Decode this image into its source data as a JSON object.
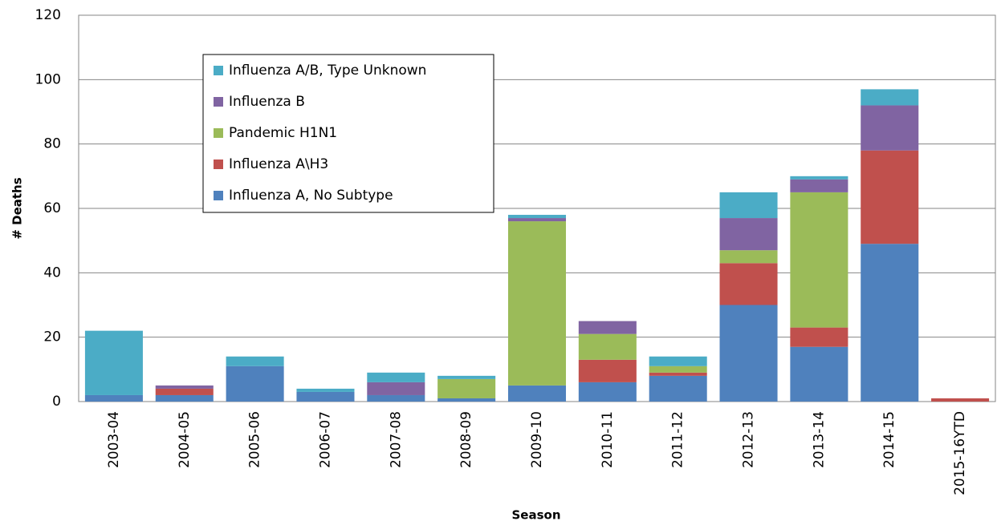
{
  "chart_data": {
    "type": "stacked_bar",
    "x_label": "Season",
    "y_label": "# Deaths",
    "categories": [
      "2003-04",
      "2004-05",
      "2005-06",
      "2006-07",
      "2007-08",
      "2008-09",
      "2009-10",
      "2010-11",
      "2011-12",
      "2012-13",
      "2013-14",
      "2014-15",
      "2015-16YTD"
    ],
    "series": [
      {
        "name": "Influenza A, No Subtype",
        "color": "#4f81bd",
        "values": [
          2,
          2,
          11,
          3,
          2,
          1,
          5,
          6,
          8,
          30,
          17,
          49,
          0
        ]
      },
      {
        "name": "Influenza A\\H3",
        "color": "#c0504d",
        "values": [
          0,
          2,
          0,
          0,
          0,
          0,
          0,
          7,
          1,
          13,
          6,
          29,
          1
        ]
      },
      {
        "name": "Pandemic H1N1",
        "color": "#9bbb59",
        "values": [
          0,
          0,
          0,
          0,
          0,
          6,
          51,
          8,
          2,
          4,
          42,
          0,
          0
        ]
      },
      {
        "name": "Influenza B",
        "color": "#8064a2",
        "values": [
          0,
          1,
          0,
          0,
          4,
          0,
          1,
          4,
          0,
          10,
          4,
          14,
          0
        ]
      },
      {
        "name": "Influenza A/B, Type Unknown",
        "color": "#4bacc6",
        "values": [
          20,
          0,
          3,
          1,
          3,
          1,
          1,
          0,
          3,
          8,
          1,
          5,
          0
        ]
      }
    ],
    "ylim": [
      0,
      120
    ],
    "yticks": [
      0,
      20,
      40,
      60,
      80,
      100,
      120
    ],
    "grid": true
  }
}
